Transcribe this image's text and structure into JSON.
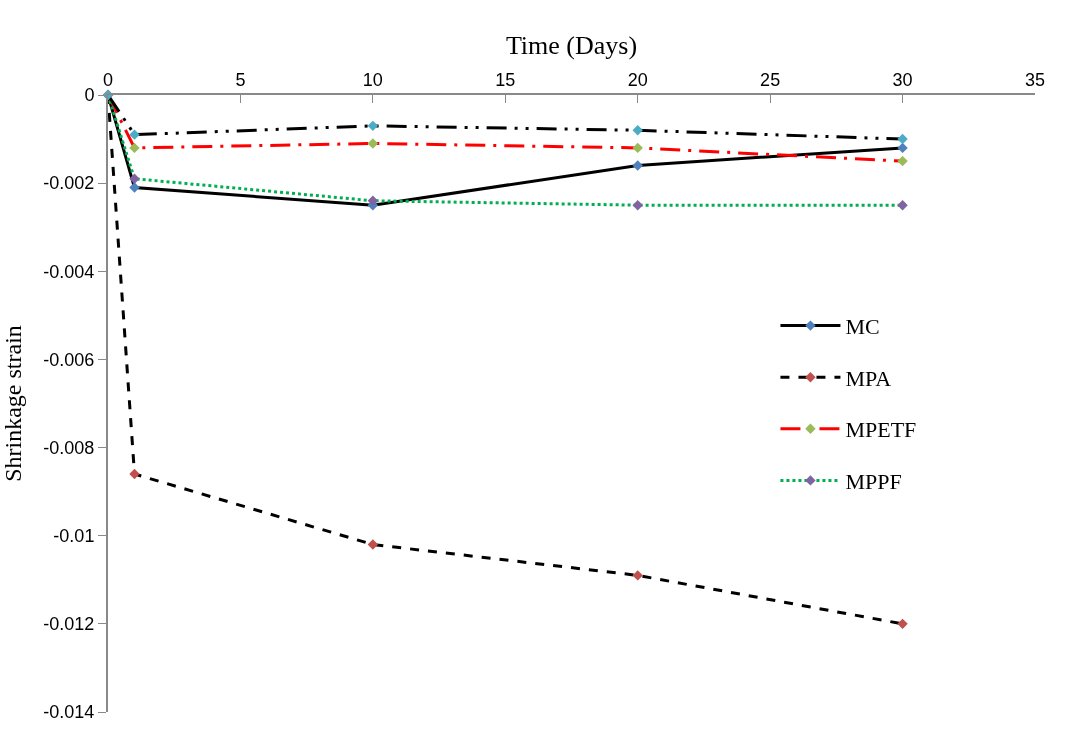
{
  "chart_data": {
    "type": "line",
    "xlabel": "Time (Days)",
    "ylabel": "Shrinkage strain",
    "x": [
      0,
      1,
      10,
      20,
      30
    ],
    "xlim": [
      0,
      35
    ],
    "xticks": [
      0,
      5,
      10,
      15,
      20,
      25,
      30,
      35
    ],
    "ylim": [
      -0.014,
      0
    ],
    "yticks": [
      0,
      -0.002,
      -0.004,
      -0.006,
      -0.008,
      -0.01,
      -0.012,
      -0.014
    ],
    "legend": "right",
    "marker": "diamond",
    "series": [
      {
        "name": "MC",
        "color": "#000000",
        "colors": [
          "#4f81bd",
          "#4f81bd",
          "#4f81bd",
          "#4f81bd",
          "#4f81bd"
        ],
        "line_style": "solid",
        "values": [
          0,
          -0.0021,
          -0.0025,
          -0.0016,
          -0.0012
        ]
      },
      {
        "name": "MPA",
        "color": "#000000",
        "colors": [
          "#c0504d",
          "#c0504d",
          "#c0504d",
          "#c0504d",
          "#c0504d"
        ],
        "line_style": "dashed",
        "values": [
          0,
          -0.0086,
          -0.0102,
          -0.0109,
          -0.012
        ]
      },
      {
        "name": "MPETF",
        "color": "#ff0000",
        "colors": [
          "#9bbb59",
          "#9bbb59",
          "#9bbb59",
          "#9bbb59",
          "#9bbb59"
        ],
        "line_style": "dashdot",
        "values": [
          0,
          -0.0012,
          -0.0011,
          -0.0012,
          -0.0015
        ]
      },
      {
        "name": "MPPF",
        "color": "#00b050",
        "colors": [
          "#8064a2",
          "#8064a2",
          "#8064a2",
          "#8064a2",
          "#8064a2"
        ],
        "line_style": "dotted",
        "values": [
          0,
          -0.0019,
          -0.0024,
          -0.0025,
          -0.0025
        ]
      },
      {
        "color": "#000000",
        "colors": [
          "#4bacc6",
          "#4bacc6",
          "#4bacc6",
          "#4bacc6",
          "#4bacc6"
        ],
        "line_style": "dashdotdot",
        "values": [
          0,
          -0.0009,
          -0.0007,
          -0.0008,
          -0.001
        ]
      }
    ]
  }
}
